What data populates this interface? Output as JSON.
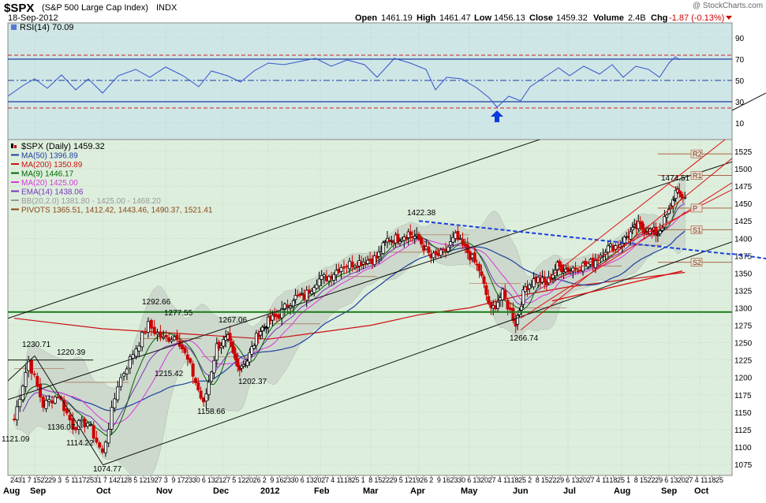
{
  "header": {
    "symbol": "$SPX",
    "name": "(S&P 500 Large Cap Index)",
    "exchange": "INDX",
    "date": "18-Sep-2012",
    "open_label": "Open",
    "open": "1461.19",
    "high_label": "High",
    "high": "1461.47",
    "low_label": "Low",
    "low": "1456.13",
    "close_label": "Close",
    "close": "1459.32",
    "volume_label": "Volume",
    "volume": "2.4B",
    "chg_label": "Chg",
    "chg": "-1.87 (-0.13%)",
    "copyright": "@ StockCharts.com"
  },
  "rsi_panel": {
    "label": "RSI(14) 70.09",
    "ticks": [
      "90",
      "70",
      "50",
      "30",
      "10"
    ]
  },
  "legend": [
    {
      "text": "$SPX (Daily) 1459.32",
      "color": "#000000"
    },
    {
      "text": "MA(50) 1396.89",
      "color": "#1f3fa0"
    },
    {
      "text": "MA(200) 1350.89",
      "color": "#cc1111"
    },
    {
      "text": "MA(9) 1446.17",
      "color": "#006600"
    },
    {
      "text": "MA(20) 1425.00",
      "color": "#dd33dd"
    },
    {
      "text": "EMA(14) 1438.06",
      "color": "#7733bb"
    },
    {
      "text": "BB(20,2.0) 1381.80 - 1425.00 - 1468.20",
      "color": "#999999"
    },
    {
      "text": "PIVOTS 1365.51, 1412.42, 1443.46, 1490.37, 1521.41",
      "color": "#8b4513"
    }
  ],
  "price_axis_ticks": [
    "1525",
    "1500",
    "1475",
    "1450",
    "1425",
    "1400",
    "1375",
    "1350",
    "1325",
    "1300",
    "1275",
    "1250",
    "1225",
    "1200",
    "1175",
    "1150",
    "1125",
    "1100",
    "1075"
  ],
  "pivot_labels": [
    "R2",
    "R1",
    "P",
    "S1",
    "S2"
  ],
  "price_annotations": [
    "1121.09",
    "1230.71",
    "1136.07",
    "1220.39",
    "1114.22",
    "1074.77",
    "1292.66",
    "1215.42",
    "1277.55",
    "1158.66",
    "1267.06",
    "1202.37",
    "1422.38",
    "1266.74",
    "1474.51"
  ],
  "x_axis": {
    "day_ticks": [
      "24",
      "31",
      "7",
      "15",
      "22",
      "29",
      "3",
      "5",
      "11",
      "17",
      "25",
      "31",
      "7",
      "14",
      "21",
      "28",
      "5",
      "12",
      "19",
      "27",
      "3",
      "9",
      "17",
      "23",
      "30",
      "6",
      "13",
      "21",
      "27",
      "5",
      "12",
      "20",
      "26",
      "2",
      "9",
      "16",
      "23",
      "30",
      "6",
      "13",
      "20",
      "27",
      "4",
      "11",
      "18",
      "25",
      "1",
      "8",
      "15",
      "22",
      "29",
      "5",
      "12",
      "19",
      "26",
      "2",
      "9",
      "16",
      "23",
      "30",
      "6",
      "13",
      "20",
      "27",
      "4",
      "11",
      "18",
      "25",
      "2",
      "8",
      "15",
      "22",
      "29",
      "6",
      "13",
      "20",
      "27",
      "4",
      "11",
      "18",
      "25",
      "1",
      "8",
      "15",
      "22",
      "29",
      "6",
      "13",
      "20",
      "27",
      "4",
      "11",
      "18",
      "25"
    ],
    "month_labels": [
      "Aug",
      "Sep",
      "Oct",
      "Nov",
      "Dec",
      "2012",
      "Feb",
      "Mar",
      "Apr",
      "May",
      "Jun",
      "Jul",
      "Aug",
      "Sep",
      "Oct"
    ]
  },
  "chart_data": {
    "type": "line",
    "title": "$SPX (S&P 500 Large Cap Index) INDX",
    "ylim": [
      1060,
      1545
    ],
    "series": [
      {
        "name": "$SPX (Daily)",
        "color": "#000000",
        "x": [
          "2011-08-22",
          "2011-08-29",
          "2011-09-05",
          "2011-09-12",
          "2011-09-19",
          "2011-09-26",
          "2011-10-03",
          "2011-10-10",
          "2011-10-17",
          "2011-10-24",
          "2011-10-31",
          "2011-11-07",
          "2011-11-14",
          "2011-11-21",
          "2011-11-28",
          "2011-12-05",
          "2011-12-12",
          "2011-12-19",
          "2011-12-27",
          "2012-01-03",
          "2012-01-09",
          "2012-01-17",
          "2012-01-23",
          "2012-01-30",
          "2012-02-06",
          "2012-02-13",
          "2012-02-21",
          "2012-02-27",
          "2012-03-05",
          "2012-03-12",
          "2012-03-19",
          "2012-03-26",
          "2012-04-02",
          "2012-04-09",
          "2012-04-16",
          "2012-04-23",
          "2012-04-30",
          "2012-05-07",
          "2012-05-14",
          "2012-05-21",
          "2012-05-29",
          "2012-06-04",
          "2012-06-11",
          "2012-06-18",
          "2012-06-25",
          "2012-07-02",
          "2012-07-09",
          "2012-07-16",
          "2012-07-23",
          "2012-07-30",
          "2012-08-06",
          "2012-08-13",
          "2012-08-20",
          "2012-08-27",
          "2012-09-04",
          "2012-09-10",
          "2012-09-18"
        ],
        "values": [
          1140,
          1225,
          1160,
          1175,
          1130,
          1135,
          1090,
          1190,
          1235,
          1275,
          1255,
          1260,
          1215,
          1160,
          1245,
          1255,
          1215,
          1225,
          1265,
          1280,
          1290,
          1315,
          1316,
          1340,
          1345,
          1360,
          1365,
          1368,
          1372,
          1398,
          1400,
          1408,
          1398,
          1372,
          1378,
          1402,
          1380,
          1355,
          1295,
          1320,
          1278,
          1330,
          1342,
          1335,
          1360,
          1355,
          1360,
          1365,
          1385,
          1390,
          1405,
          1418,
          1411,
          1407,
          1438,
          1466,
          1459
        ]
      },
      {
        "name": "MA(50)",
        "color": "#1f3fa0"
      },
      {
        "name": "MA(200)",
        "color": "#cc1111"
      },
      {
        "name": "MA(9)",
        "color": "#006600"
      },
      {
        "name": "MA(20)",
        "color": "#dd33dd"
      },
      {
        "name": "EMA(14)",
        "color": "#7733bb"
      }
    ],
    "rsi_series": {
      "name": "RSI(14)",
      "ylim": [
        0,
        100
      ],
      "last": 70.09
    },
    "horizontal_levels": [
      1294,
      1453,
      1498,
      1525
    ],
    "pivots": [
      1365.51,
      1412.42,
      1443.46,
      1490.37,
      1521.41
    ],
    "colors": {
      "panel_bg": "#ddeedd",
      "rsi_bg": "#cfe6e6",
      "up": "#000000",
      "down": "#cc0000",
      "trend_blue": "#1a3fdd",
      "support_green": "#1b7a1b"
    }
  }
}
